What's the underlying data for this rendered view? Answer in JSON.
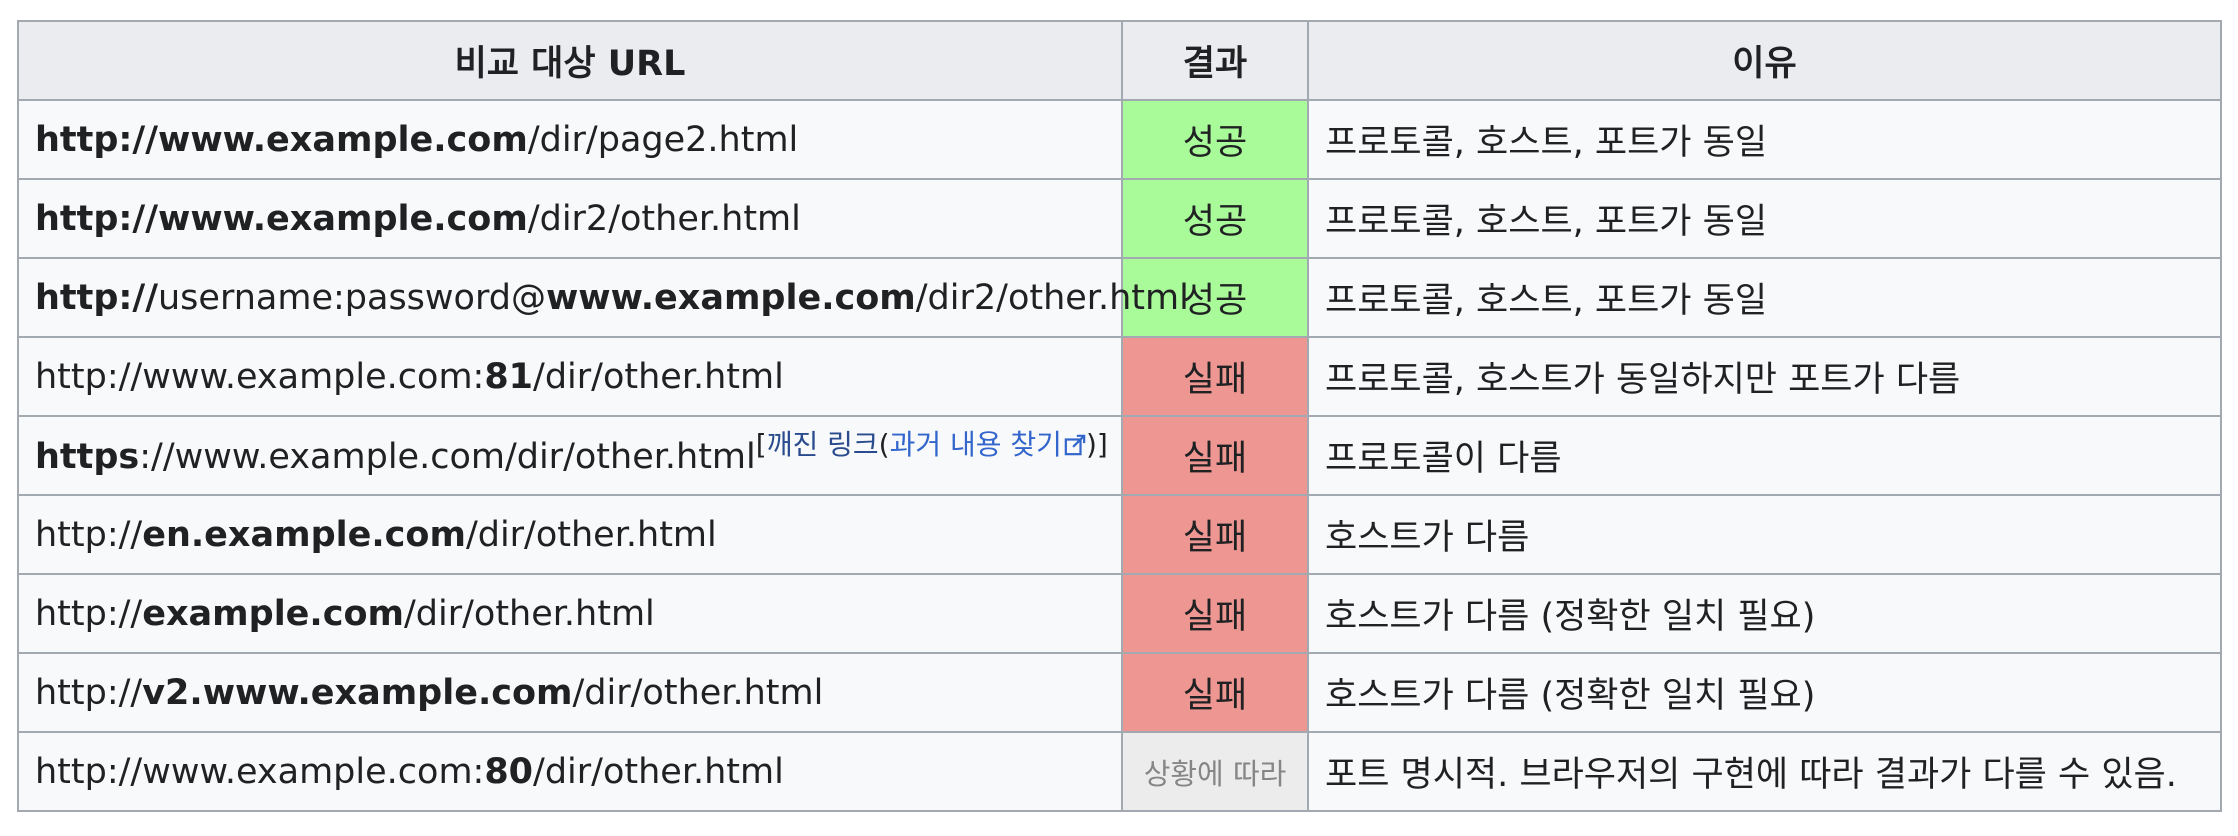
{
  "table": {
    "headers": [
      "비교 대상 URL",
      "결과",
      "이유"
    ],
    "rows": [
      {
        "url": [
          {
            "text": "http://www.example.com",
            "bold": true
          },
          {
            "text": "/dir/page2.html",
            "bold": false
          }
        ],
        "result": "성공",
        "status": "ok",
        "reason": "프로토콜, 호스트, 포트가 동일"
      },
      {
        "url": [
          {
            "text": "http://www.example.com",
            "bold": true
          },
          {
            "text": "/dir2/other.html",
            "bold": false
          }
        ],
        "result": "성공",
        "status": "ok",
        "reason": "프로토콜, 호스트, 포트가 동일"
      },
      {
        "url": [
          {
            "text": "http://",
            "bold": true
          },
          {
            "text": "username:password@",
            "bold": false
          },
          {
            "text": "www.example.com",
            "bold": true
          },
          {
            "text": "/dir2/other.html",
            "bold": false
          }
        ],
        "result": "성공",
        "status": "ok",
        "reason": "프로토콜, 호스트, 포트가 동일"
      },
      {
        "url": [
          {
            "text": "http://www.example.com:",
            "bold": false
          },
          {
            "text": "81",
            "bold": true
          },
          {
            "text": "/dir/other.html",
            "bold": false
          }
        ],
        "result": "실패",
        "status": "fail",
        "reason": "프로토콜, 호스트가 동일하지만 포트가 다름"
      },
      {
        "url": [
          {
            "text": "https",
            "bold": true
          },
          {
            "text": "://www.example.com/dir/other.html",
            "bold": false
          }
        ],
        "note": {
          "open": "[",
          "dead_link": "깨진 링크",
          "paren_open": "(",
          "archive_link": "과거 내용 찾기",
          "archive_icon": "external-link-icon",
          "close": ")]"
        },
        "result": "실패",
        "status": "fail",
        "reason": "프로토콜이 다름"
      },
      {
        "url": [
          {
            "text": "http://",
            "bold": false
          },
          {
            "text": "en.example.com",
            "bold": true
          },
          {
            "text": "/dir/other.html",
            "bold": false
          }
        ],
        "result": "실패",
        "status": "fail",
        "reason": "호스트가 다름"
      },
      {
        "url": [
          {
            "text": "http://",
            "bold": false
          },
          {
            "text": "example.com",
            "bold": true
          },
          {
            "text": "/dir/other.html",
            "bold": false
          }
        ],
        "result": "실패",
        "status": "fail",
        "reason": "호스트가 다름 (정확한 일치 필요)"
      },
      {
        "url": [
          {
            "text": "http://",
            "bold": false
          },
          {
            "text": "v2.www.example.com",
            "bold": true
          },
          {
            "text": "/dir/other.html",
            "bold": false
          }
        ],
        "result": "실패",
        "status": "fail",
        "reason": "호스트가 다름 (정확한 일치 필요)"
      },
      {
        "url": [
          {
            "text": "http://www.example.com:",
            "bold": false
          },
          {
            "text": "80",
            "bold": true
          },
          {
            "text": "/dir/other.html",
            "bold": false
          }
        ],
        "result": "상황에 따라",
        "status": "misc",
        "reason": "포트 명시적. 브라우저의 구현에 따라 결과가 다를 수 있음."
      }
    ]
  },
  "colors": {
    "ok": "#a9fb9a",
    "fail": "#ee9692",
    "misc": "#ececec",
    "header": "#eaecf0",
    "border": "#a2a9b1",
    "link": "#3366cc"
  }
}
